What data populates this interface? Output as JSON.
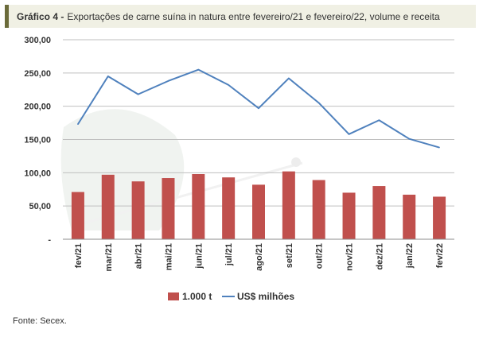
{
  "header": {
    "lead": "Gráfico 4 -",
    "title": "Exportações de carne suína in natura entre fevereiro/21 e fevereiro/22, volume e receita"
  },
  "footer": {
    "source_label": "Fonte:",
    "source_value": "Secex."
  },
  "colors": {
    "bar": "#c0504d",
    "line": "#4f81bd",
    "grid": "#bfbfbf",
    "title_accent": "#6b6b3a",
    "title_bg": "#f0f0e4"
  },
  "chart_data": {
    "type": "bar",
    "title": "Exportações de carne suína in natura entre fevereiro/21 e fevereiro/22, volume e receita",
    "categories": [
      "fev/21",
      "mar/21",
      "abr/21",
      "mai/21",
      "jun/21",
      "jul/21",
      "ago/21",
      "set/21",
      "out/21",
      "nov/21",
      "dez/21",
      "jan/22",
      "fev/22"
    ],
    "series": [
      {
        "name": "1.000 t",
        "type": "bar",
        "values": [
          71,
          97,
          87,
          92,
          98,
          93,
          82,
          102,
          89,
          70,
          80,
          67,
          64
        ]
      },
      {
        "name": "US$ milhões",
        "type": "line",
        "values": [
          173,
          245,
          218,
          238,
          255,
          232,
          197,
          242,
          205,
          158,
          179,
          151,
          138
        ]
      }
    ],
    "y_ticks": [
      "300,00",
      "250,00",
      "200,00",
      "150,00",
      "100,00",
      "50,00",
      "-"
    ],
    "ylim": [
      0,
      300
    ],
    "grid": true,
    "legend_position": "bottom"
  }
}
